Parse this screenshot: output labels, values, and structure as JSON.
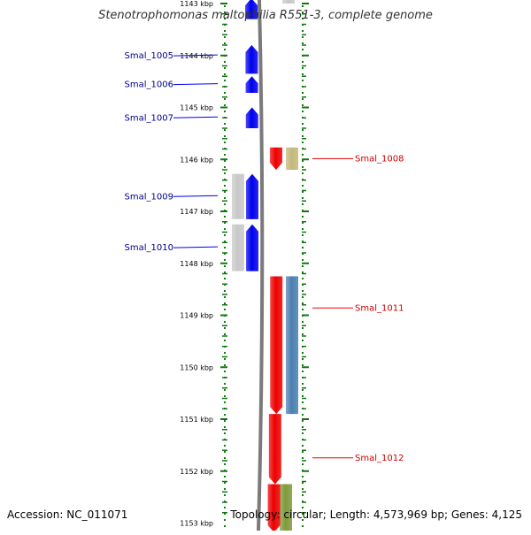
{
  "header": {
    "title": "Stenotrophomonas maltophilia R551-3, complete genome"
  },
  "footer": {
    "accession": "Accession: NC_011071",
    "summary": "Topology: circular; Length: 4,573,969 bp; Genes: 4,125"
  },
  "colors": {
    "ruler": "#117711",
    "reverse_strand": "#0000ee",
    "forward_strand": "#ee0000",
    "gene_gray": "#c8c8c8",
    "gene_khaki": "#c4b87a",
    "gene_steelblue": "#4a7fb0",
    "gene_olive": "#7f9a3a",
    "backbone": "#7a7a7a"
  },
  "ruler": {
    "labels": [
      "1143 kbp",
      "1144 kbp",
      "1145 kbp",
      "1146 kbp",
      "1147 kbp",
      "1148 kbp",
      "1149 kbp",
      "1150 kbp",
      "1151 kbp",
      "1152 kbp",
      "1153 kbp"
    ]
  },
  "genes": [
    {
      "name": "",
      "strand": "reverse",
      "start_kbp": 1142.9,
      "end_kbp": 1143.3
    },
    {
      "name": "Smal_1005",
      "strand": "reverse",
      "start_kbp": 1143.8,
      "end_kbp": 1144.35
    },
    {
      "name": "Smal_1006",
      "strand": "reverse",
      "start_kbp": 1144.4,
      "end_kbp": 1144.72
    },
    {
      "name": "Smal_1007",
      "strand": "reverse",
      "start_kbp": 1145.0,
      "end_kbp": 1145.4
    },
    {
      "name": "Smal_1008",
      "strand": "forward",
      "start_kbp": 1145.77,
      "end_kbp": 1146.2
    },
    {
      "name": "Smal_1009",
      "strand": "reverse",
      "start_kbp": 1146.28,
      "end_kbp": 1147.15
    },
    {
      "name": "Smal_1010",
      "strand": "reverse",
      "start_kbp": 1147.25,
      "end_kbp": 1148.15
    },
    {
      "name": "Smal_1011",
      "strand": "forward",
      "start_kbp": 1148.25,
      "end_kbp": 1150.9
    },
    {
      "name": "Smal_1012",
      "strand": "forward",
      "start_kbp": 1150.9,
      "end_kbp": 1152.25
    },
    {
      "name": "",
      "strand": "forward",
      "start_kbp": 1152.25,
      "end_kbp": 1153.2
    }
  ]
}
